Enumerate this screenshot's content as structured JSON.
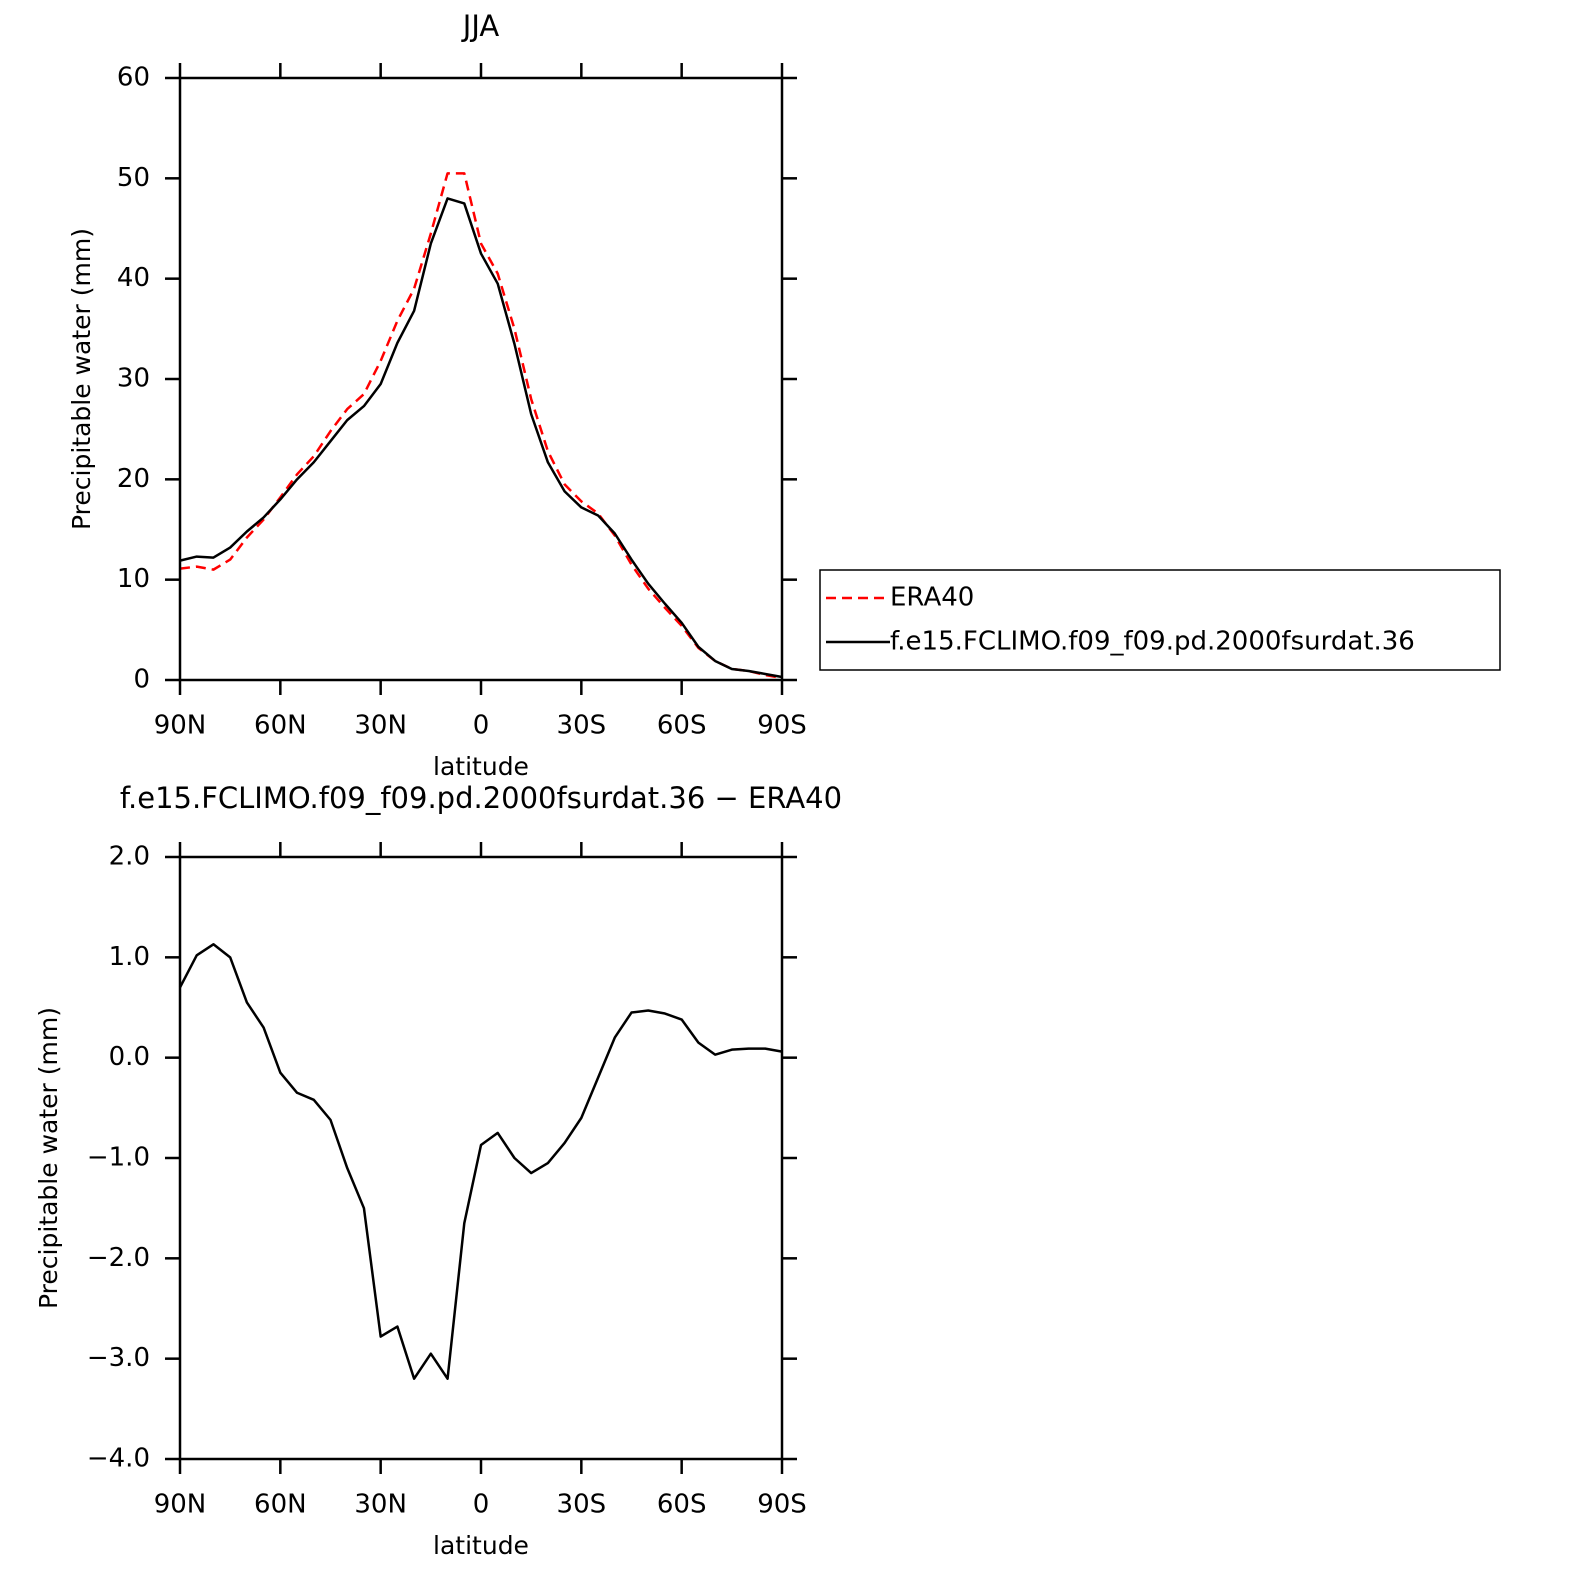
{
  "chart_data": [
    {
      "type": "line",
      "title": "JJA",
      "xlabel": "latitude",
      "ylabel": "Precipitable water (mm)",
      "x": [
        90,
        85,
        80,
        75,
        70,
        65,
        60,
        55,
        50,
        45,
        40,
        35,
        30,
        25,
        20,
        15,
        10,
        5,
        0,
        -5,
        -10,
        -15,
        -20,
        -25,
        -30,
        -35,
        -40,
        -45,
        -50,
        -55,
        -60,
        -65,
        -70,
        -75,
        -80,
        -85,
        -90
      ],
      "series": [
        {
          "name": "ERA40",
          "color": "#ff0000",
          "dash": true,
          "values": [
            11.1,
            11.3,
            11.0,
            12.0,
            14.2,
            16.0,
            18.2,
            20.5,
            22.3,
            24.8,
            27.0,
            28.5,
            31.8,
            35.8,
            39.0,
            44.5,
            50.5,
            50.5,
            43.5,
            40.5,
            35.0,
            28.0,
            22.8,
            19.5,
            17.8,
            16.6,
            14.4,
            11.5,
            9.1,
            7.2,
            5.4,
            3.2,
            1.9,
            1.1,
            0.9,
            0.5,
            0.2
          ]
        },
        {
          "name": "f.e15.FCLIMO.f09_f09.pd.2000fsurdat.36",
          "color": "#000000",
          "dash": false,
          "values": [
            11.9,
            12.3,
            12.2,
            13.2,
            14.8,
            16.2,
            18.0,
            20.0,
            21.7,
            23.8,
            25.9,
            27.3,
            29.5,
            33.6,
            36.8,
            43.5,
            48.0,
            47.5,
            42.5,
            39.5,
            33.5,
            26.5,
            21.7,
            18.8,
            17.2,
            16.4,
            14.6,
            12.0,
            9.6,
            7.6,
            5.7,
            3.3,
            1.9,
            1.1,
            0.9,
            0.6,
            0.3
          ]
        }
      ],
      "xlim": [
        90,
        -90
      ],
      "xticks": [
        {
          "value": 90,
          "label": "90N"
        },
        {
          "value": 60,
          "label": "60N"
        },
        {
          "value": 30,
          "label": "30N"
        },
        0,
        {
          "value": -30,
          "label": "30S"
        },
        {
          "value": -60,
          "label": "60S"
        },
        {
          "value": -90,
          "label": "90S"
        }
      ],
      "ylim": [
        0,
        60
      ],
      "yticks": [
        0,
        10,
        20,
        30,
        40,
        50,
        60
      ],
      "legend": "right"
    },
    {
      "type": "line",
      "title": "f.e15.FCLIMO.f09_f09.pd.2000fsurdat.36 − ERA40",
      "xlabel": "latitude",
      "ylabel": "Precipitable water (mm)",
      "x": [
        90,
        85,
        80,
        75,
        70,
        65,
        60,
        55,
        50,
        45,
        40,
        35,
        30,
        25,
        20,
        15,
        10,
        5,
        0,
        -5,
        -10,
        -15,
        -20,
        -25,
        -30,
        -35,
        -40,
        -45,
        -50,
        -55,
        -60,
        -65,
        -70,
        -75,
        -80,
        -85,
        -90
      ],
      "series": [
        {
          "color": "#000000",
          "dash": false,
          "values": [
            0.7,
            1.02,
            1.13,
            1.0,
            0.55,
            0.3,
            -0.15,
            -0.35,
            -0.42,
            -0.62,
            -1.1,
            -1.5,
            -2.78,
            -2.68,
            -3.2,
            -2.95,
            -3.2,
            -1.65,
            -0.87,
            -0.75,
            -1.0,
            -1.15,
            -1.05,
            -0.85,
            -0.6,
            -0.2,
            0.2,
            0.45,
            0.47,
            0.44,
            0.38,
            0.15,
            0.03,
            0.08,
            0.09,
            0.09,
            0.06
          ]
        }
      ],
      "xlim": [
        90,
        -90
      ],
      "xticks": [
        {
          "value": 90,
          "label": "90N"
        },
        {
          "value": 60,
          "label": "60N"
        },
        {
          "value": 30,
          "label": "30N"
        },
        0,
        {
          "value": -30,
          "label": "30S"
        },
        {
          "value": -60,
          "label": "60S"
        },
        {
          "value": -90,
          "label": "90S"
        }
      ],
      "ylim": [
        -4,
        2
      ],
      "yticks": [
        {
          "value": -4,
          "label": "−4.0"
        },
        {
          "value": -3,
          "label": "−3.0"
        },
        {
          "value": -2,
          "label": "−2.0"
        },
        {
          "value": -1,
          "label": "−1.0"
        },
        {
          "value": 0,
          "label": "0.0"
        },
        {
          "value": 1,
          "label": "1.0"
        },
        {
          "value": 2,
          "label": "2.0"
        }
      ]
    }
  ]
}
